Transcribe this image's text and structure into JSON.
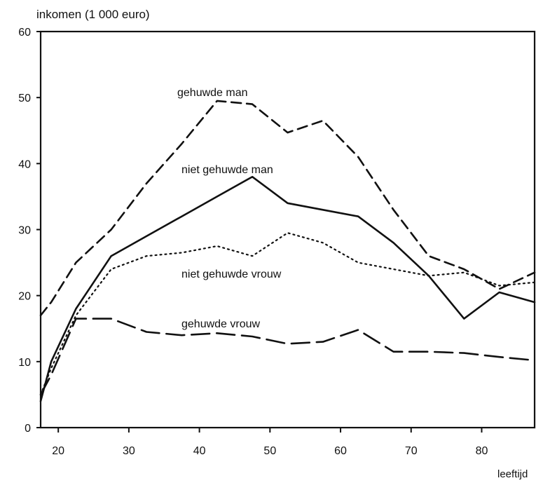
{
  "chart_data": {
    "type": "line",
    "ylabel": "inkomen (1 000  euro)",
    "xlabel": "leeftijd",
    "xlim": [
      17.5,
      87.5
    ],
    "ylim": [
      0,
      60
    ],
    "xticks": [
      20,
      30,
      40,
      50,
      60,
      70,
      80
    ],
    "yticks": [
      0,
      10,
      20,
      30,
      40,
      50,
      60
    ],
    "grid": false,
    "legend": "inline labels on lines",
    "series": [
      {
        "name": "gehuwde man",
        "style": "dashed",
        "points": [
          [
            17.5,
            17
          ],
          [
            19,
            19
          ],
          [
            22.5,
            25
          ],
          [
            27.5,
            30
          ],
          [
            32.5,
            37
          ],
          [
            37.5,
            43
          ],
          [
            42.5,
            49.5
          ],
          [
            47.5,
            49
          ],
          [
            52.5,
            44.7
          ],
          [
            57.5,
            46.5
          ],
          [
            62.5,
            41
          ],
          [
            67.5,
            33
          ],
          [
            72.5,
            26
          ],
          [
            77.5,
            24
          ],
          [
            82.5,
            21
          ],
          [
            87.5,
            23.5
          ]
        ]
      },
      {
        "name": "niet gehuwde man",
        "style": "solid",
        "points": [
          [
            17.5,
            4
          ],
          [
            19,
            10
          ],
          [
            22.5,
            18
          ],
          [
            27.5,
            26
          ],
          [
            32.5,
            29
          ],
          [
            37.5,
            32
          ],
          [
            42.5,
            35
          ],
          [
            47.5,
            38
          ],
          [
            52.5,
            34
          ],
          [
            57.5,
            33
          ],
          [
            62.5,
            32
          ],
          [
            67.5,
            28
          ],
          [
            72.5,
            23
          ],
          [
            77.5,
            16.5
          ],
          [
            82.5,
            20.5
          ],
          [
            87.5,
            19
          ]
        ]
      },
      {
        "name": "niet gehuwde vrouw",
        "style": "dotted",
        "points": [
          [
            17.5,
            5
          ],
          [
            19,
            9
          ],
          [
            22.5,
            17
          ],
          [
            27.5,
            24
          ],
          [
            32.5,
            26
          ],
          [
            37.5,
            26.5
          ],
          [
            42.5,
            27.5
          ],
          [
            47.5,
            26
          ],
          [
            52.5,
            29.5
          ],
          [
            57.5,
            28
          ],
          [
            62.5,
            25
          ],
          [
            67.5,
            24
          ],
          [
            72.5,
            23
          ],
          [
            77.5,
            23.5
          ],
          [
            82.5,
            21.5
          ],
          [
            87.5,
            22
          ]
        ]
      },
      {
        "name": "gehuwde vrouw",
        "style": "long-dashed",
        "points": [
          [
            17.5,
            5
          ],
          [
            19,
            8
          ],
          [
            22.5,
            16.5
          ],
          [
            27.5,
            16.5
          ],
          [
            32.5,
            14.5
          ],
          [
            37.5,
            14
          ],
          [
            42.5,
            14.3
          ],
          [
            47.5,
            13.8
          ],
          [
            52.5,
            12.7
          ],
          [
            57.5,
            13
          ],
          [
            62.5,
            14.8
          ],
          [
            67.5,
            11.5
          ],
          [
            72.5,
            11.5
          ],
          [
            77.5,
            11.3
          ],
          [
            82.5,
            10.7
          ],
          [
            87.5,
            10.2
          ]
        ]
      }
    ],
    "labels": {
      "gehuwde_man": "gehuwde man",
      "niet_gehuwde_man": "niet gehuwde man",
      "niet_gehuwde_vrouw": "niet gehuwde vrouw",
      "gehuwde_vrouw": "gehuwde vrouw"
    },
    "colors": {
      "line": "#111111",
      "axis": "#111111",
      "background": "#ffffff"
    }
  }
}
